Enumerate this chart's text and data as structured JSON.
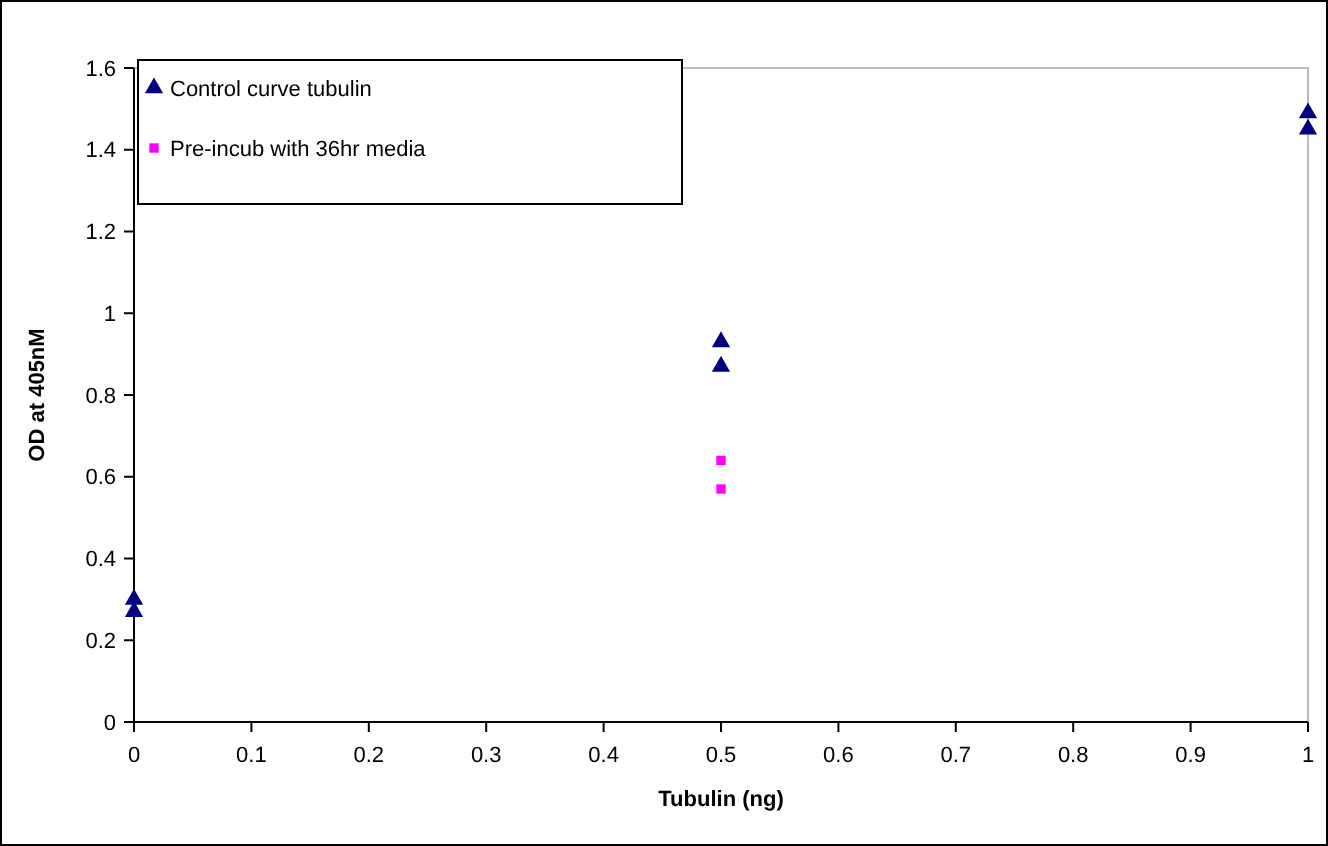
{
  "chart_data": {
    "type": "scatter",
    "xlabel": "Tubulin (ng)",
    "ylabel": "OD at 405nM",
    "xlim": [
      0,
      1
    ],
    "xticks": [
      0,
      0.1,
      0.2,
      0.3,
      0.4,
      0.5,
      0.6,
      0.7,
      0.8,
      0.9,
      1
    ],
    "ylim": [
      0,
      1.6
    ],
    "yticks": [
      0,
      0.2,
      0.4,
      0.6,
      0.8,
      1,
      1.2,
      1.4,
      1.6
    ],
    "grid": false,
    "legend": "top left",
    "series": [
      {
        "name": "Control curve tubulin",
        "color": "#000080",
        "marker": "triangle",
        "x": [
          0,
          0,
          0.5,
          0.5,
          1,
          1
        ],
        "values": [
          0.3,
          0.27,
          0.93,
          0.87,
          1.49,
          1.45
        ]
      },
      {
        "name": "Pre-incub with 36hr media",
        "color": "#ff00ff",
        "marker": "square",
        "x": [
          0.5,
          0.5
        ],
        "values": [
          0.64,
          0.57
        ]
      }
    ]
  }
}
